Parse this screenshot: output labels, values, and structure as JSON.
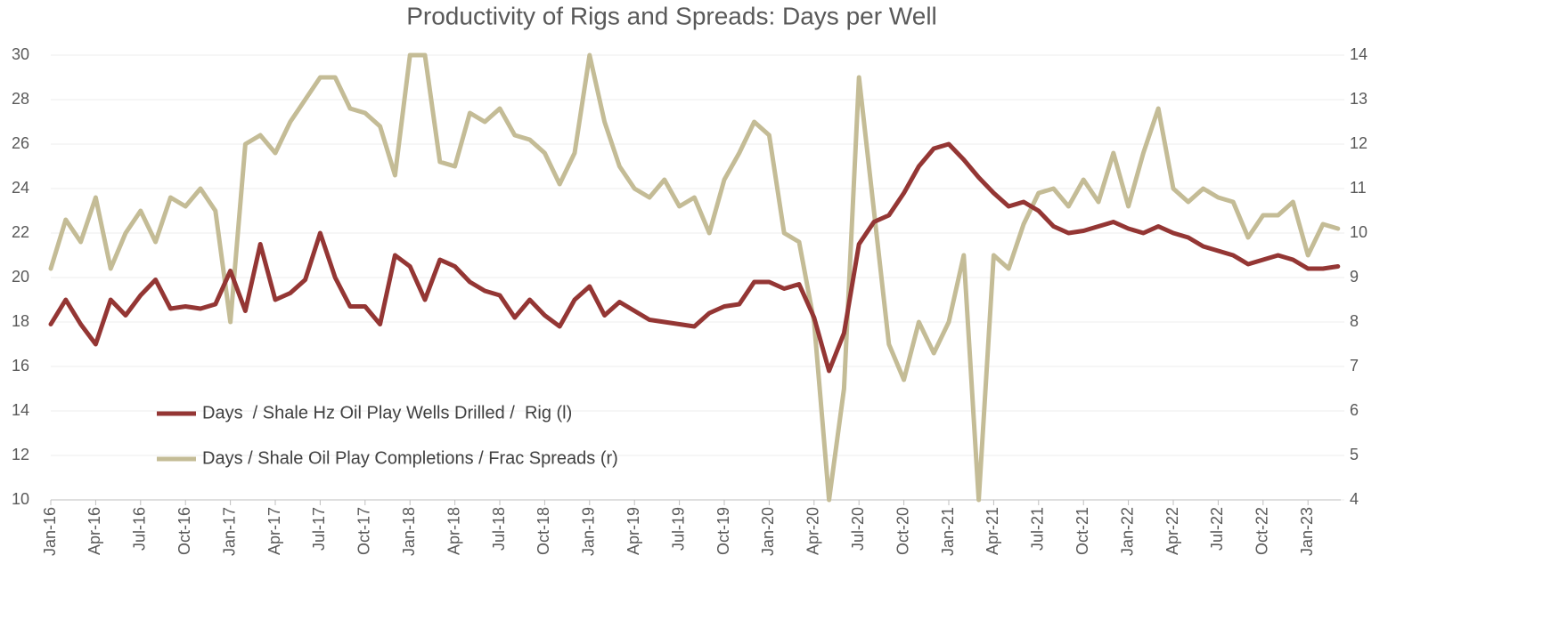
{
  "chart_data": {
    "type": "line",
    "title": "Productivity of Rigs and Spreads: Days per Well",
    "categories": [
      "Jan-16",
      null,
      null,
      "Apr-16",
      null,
      null,
      "Jul-16",
      null,
      null,
      "Oct-16",
      null,
      null,
      "Jan-17",
      null,
      null,
      "Apr-17",
      null,
      null,
      "Jul-17",
      null,
      null,
      "Oct-17",
      null,
      null,
      "Jan-18",
      null,
      null,
      "Apr-18",
      null,
      null,
      "Jul-18",
      null,
      null,
      "Oct-18",
      null,
      null,
      "Jan-19",
      null,
      null,
      "Apr-19",
      null,
      null,
      "Jul-19",
      null,
      null,
      "Oct-19",
      null,
      null,
      "Jan-20",
      null,
      null,
      "Apr-20",
      null,
      null,
      "Jul-20",
      null,
      null,
      "Oct-20",
      null,
      null,
      "Jan-21",
      null,
      null,
      "Apr-21",
      null,
      null,
      "Jul-21",
      null,
      null,
      "Oct-21",
      null,
      null,
      "Jan-22",
      null,
      null,
      "Apr-22",
      null,
      null,
      "Jul-22",
      null,
      null,
      "Oct-22",
      null,
      null,
      "Jan-23",
      null,
      null
    ],
    "series": [
      {
        "name": "Days  / Shale Hz Oil Play Wells Drilled /  Rig (l)",
        "color": "#943634",
        "axis": "y",
        "values": [
          17.9,
          19.0,
          17.9,
          17.0,
          19.0,
          18.3,
          19.2,
          19.9,
          18.6,
          18.7,
          18.6,
          18.8,
          20.3,
          18.5,
          21.5,
          19.0,
          19.3,
          19.9,
          22.0,
          20.0,
          18.7,
          18.7,
          17.9,
          21.0,
          20.5,
          19.0,
          20.8,
          20.5,
          19.8,
          19.4,
          19.2,
          18.2,
          19.0,
          18.3,
          17.8,
          19.0,
          19.6,
          18.3,
          18.9,
          18.5,
          18.1,
          18.0,
          17.9,
          17.8,
          18.4,
          18.7,
          18.8,
          19.8,
          19.8,
          19.5,
          19.7,
          18.2,
          15.8,
          17.5,
          21.5,
          22.5,
          22.8,
          23.8,
          25.0,
          25.8,
          26.0,
          25.3,
          24.5,
          23.8,
          23.2,
          23.4,
          23.0,
          22.3,
          22.0,
          22.1,
          22.3,
          22.5,
          22.2,
          22.0,
          22.3,
          22.0,
          21.8,
          21.4,
          21.2,
          21.0,
          20.6,
          20.8,
          21.0,
          20.8,
          20.4,
          20.4,
          20.5
        ]
      },
      {
        "name": "Days / Shale Oil Play Completions / Frac Spreads (r)",
        "color": "#c4bc96",
        "axis": "y2",
        "values": [
          9.2,
          10.3,
          9.8,
          10.8,
          9.2,
          10.0,
          10.5,
          9.8,
          10.8,
          10.6,
          11.0,
          10.5,
          8.0,
          12.0,
          12.2,
          11.8,
          12.5,
          13.0,
          13.5,
          13.5,
          12.8,
          12.7,
          12.4,
          11.3,
          14.0,
          14.0,
          11.6,
          11.5,
          12.7,
          12.5,
          12.8,
          12.2,
          12.1,
          11.8,
          11.1,
          11.8,
          14.0,
          12.5,
          11.5,
          11.0,
          10.8,
          11.2,
          10.6,
          10.8,
          10.0,
          11.2,
          11.8,
          12.5,
          12.2,
          10.0,
          9.8,
          8.0,
          4.0,
          6.5,
          13.5,
          10.5,
          7.5,
          6.7,
          8.0,
          7.3,
          8.0,
          9.5,
          4.0,
          9.5,
          9.2,
          10.2,
          10.9,
          11.0,
          10.6,
          11.2,
          10.7,
          11.8,
          10.6,
          11.8,
          12.8,
          11.0,
          10.7,
          11.0,
          10.8,
          10.7,
          9.9,
          10.4,
          10.4,
          10.7,
          9.5,
          10.2,
          10.1
        ]
      }
    ],
    "ylim": [
      10,
      30
    ],
    "yticks": [
      10,
      12,
      14,
      16,
      18,
      20,
      22,
      24,
      26,
      28,
      30
    ],
    "y2lim": [
      4,
      14
    ],
    "y2ticks": [
      4,
      5,
      6,
      7,
      8,
      9,
      10,
      11,
      12,
      13,
      14
    ],
    "grid": true
  }
}
